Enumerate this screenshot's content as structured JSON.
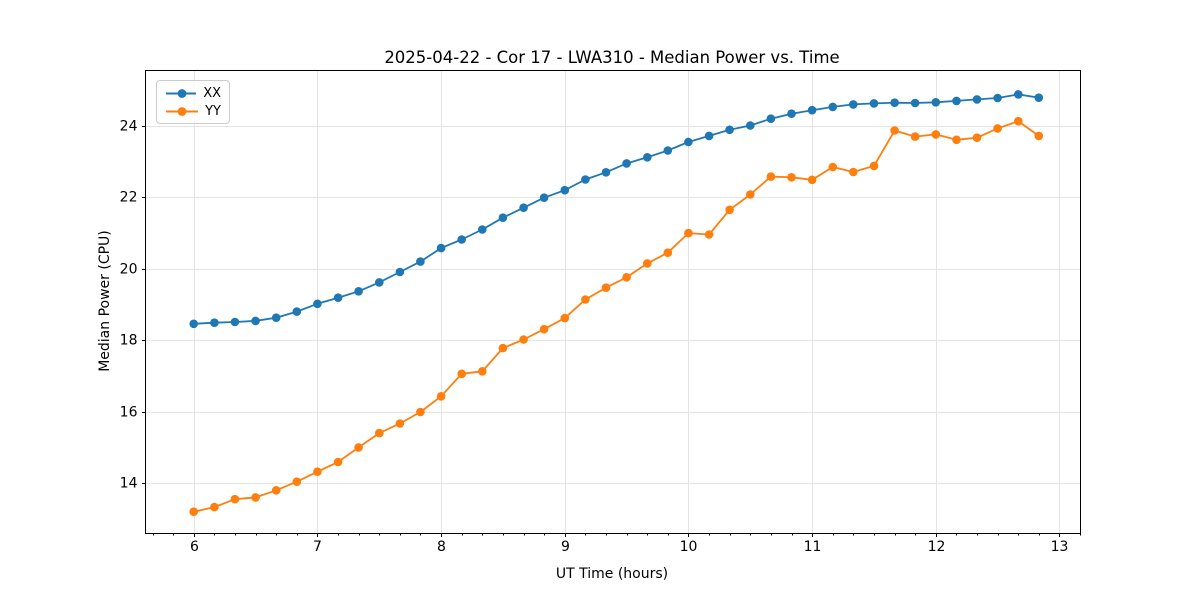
{
  "chart_data": {
    "type": "line",
    "title": "2025-04-22 - Cor 17 - LWA310 - Median Power vs. Time",
    "xlabel": "UT Time (hours)",
    "ylabel": "Median Power (CPU)",
    "xlim": [
      5.61,
      13.17
    ],
    "ylim": [
      12.59,
      25.55
    ],
    "xticks": [
      6,
      7,
      8,
      9,
      10,
      11,
      12,
      13
    ],
    "yticks": [
      14,
      16,
      18,
      20,
      22,
      24
    ],
    "x_minor_step": 0.16667,
    "grid": true,
    "grid_color": "#e4e4e4",
    "legend_position": "upper-left",
    "x": [
      6.0,
      6.167,
      6.333,
      6.5,
      6.667,
      6.833,
      7.0,
      7.167,
      7.333,
      7.5,
      7.667,
      7.833,
      8.0,
      8.167,
      8.333,
      8.5,
      8.667,
      8.833,
      9.0,
      9.167,
      9.333,
      9.5,
      9.667,
      9.833,
      10.0,
      10.167,
      10.333,
      10.5,
      10.667,
      10.833,
      11.0,
      11.167,
      11.333,
      11.5,
      11.667,
      11.833,
      12.0,
      12.167,
      12.333,
      12.5,
      12.667,
      12.833
    ],
    "series": [
      {
        "name": "XX",
        "color": "#1f77b4",
        "values": [
          18.46,
          18.49,
          18.51,
          18.54,
          18.63,
          18.8,
          19.02,
          19.19,
          19.37,
          19.62,
          19.91,
          20.2,
          20.58,
          20.82,
          21.1,
          21.43,
          21.71,
          21.99,
          22.2,
          22.5,
          22.7,
          22.95,
          23.12,
          23.31,
          23.55,
          23.72,
          23.89,
          24.01,
          24.2,
          24.34,
          24.44,
          24.53,
          24.6,
          24.63,
          24.65,
          24.64,
          24.66,
          24.7,
          24.74,
          24.78,
          24.88,
          24.79
        ]
      },
      {
        "name": "YY",
        "color": "#ff7f0e",
        "values": [
          13.2,
          13.33,
          13.55,
          13.6,
          13.8,
          14.04,
          14.32,
          14.59,
          15.0,
          15.4,
          15.67,
          15.99,
          16.43,
          17.06,
          17.13,
          17.78,
          18.02,
          18.31,
          18.62,
          19.14,
          19.47,
          19.76,
          20.15,
          20.45,
          21.0,
          20.96,
          21.65,
          22.08,
          22.58,
          22.56,
          22.49,
          22.85,
          22.71,
          22.88,
          23.87,
          23.7,
          23.76,
          23.61,
          23.67,
          23.93,
          24.13,
          23.72
        ]
      }
    ]
  }
}
